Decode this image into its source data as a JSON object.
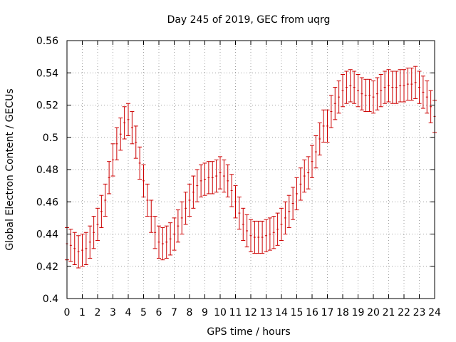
{
  "chart_data": {
    "type": "scatter",
    "title": "Day 245 of 2019, GEC from uqrg",
    "xlabel": "GPS time / hours",
    "ylabel": "Global Electron Content / GECUs",
    "xlim": [
      0,
      24
    ],
    "ylim": [
      0.4,
      0.56
    ],
    "grid": true,
    "x_ticks": [
      0,
      1,
      2,
      3,
      4,
      5,
      6,
      7,
      8,
      9,
      10,
      11,
      12,
      13,
      14,
      15,
      16,
      17,
      18,
      19,
      20,
      21,
      22,
      23,
      24
    ],
    "x_tick_labels": [
      "0",
      "1",
      "2",
      "3",
      "4",
      "5",
      "6",
      "7",
      "8",
      "9",
      "10",
      "11",
      "12",
      "13",
      "14",
      "15",
      "16",
      "17",
      "18",
      "19",
      "20",
      "21",
      "22",
      "23",
      "24"
    ],
    "y_ticks": [
      0.4,
      0.42,
      0.44,
      0.46,
      0.48,
      0.5,
      0.52,
      0.54,
      0.56
    ],
    "y_tick_labels": [
      "0.4",
      "0.42",
      "0.44",
      "0.46",
      "0.48",
      "0.5",
      "0.52",
      "0.54",
      "0.56"
    ],
    "series_color": "#cc0000",
    "error": 0.01,
    "series": [
      {
        "name": "GEC",
        "points": [
          [
            0.0,
            0.434
          ],
          [
            0.25,
            0.433
          ],
          [
            0.5,
            0.431
          ],
          [
            0.75,
            0.429
          ],
          [
            1.0,
            0.43
          ],
          [
            1.25,
            0.431
          ],
          [
            1.5,
            0.435
          ],
          [
            1.75,
            0.441
          ],
          [
            2.0,
            0.446
          ],
          [
            2.25,
            0.454
          ],
          [
            2.5,
            0.461
          ],
          [
            2.75,
            0.475
          ],
          [
            3.0,
            0.486
          ],
          [
            3.25,
            0.496
          ],
          [
            3.5,
            0.502
          ],
          [
            3.75,
            0.509
          ],
          [
            4.0,
            0.511
          ],
          [
            4.25,
            0.506
          ],
          [
            4.5,
            0.497
          ],
          [
            4.75,
            0.484
          ],
          [
            5.0,
            0.473
          ],
          [
            5.25,
            0.461
          ],
          [
            5.5,
            0.451
          ],
          [
            5.75,
            0.441
          ],
          [
            6.0,
            0.435
          ],
          [
            6.25,
            0.434
          ],
          [
            6.5,
            0.435
          ],
          [
            6.75,
            0.437
          ],
          [
            7.0,
            0.44
          ],
          [
            7.25,
            0.445
          ],
          [
            7.5,
            0.45
          ],
          [
            7.75,
            0.456
          ],
          [
            8.0,
            0.461
          ],
          [
            8.25,
            0.466
          ],
          [
            8.5,
            0.47
          ],
          [
            8.75,
            0.473
          ],
          [
            9.0,
            0.474
          ],
          [
            9.25,
            0.475
          ],
          [
            9.5,
            0.475
          ],
          [
            9.75,
            0.476
          ],
          [
            10.0,
            0.478
          ],
          [
            10.25,
            0.476
          ],
          [
            10.5,
            0.473
          ],
          [
            10.75,
            0.467
          ],
          [
            11.0,
            0.46
          ],
          [
            11.25,
            0.453
          ],
          [
            11.5,
            0.446
          ],
          [
            11.75,
            0.442
          ],
          [
            12.0,
            0.439
          ],
          [
            12.25,
            0.438
          ],
          [
            12.5,
            0.438
          ],
          [
            12.75,
            0.438
          ],
          [
            13.0,
            0.439
          ],
          [
            13.25,
            0.44
          ],
          [
            13.5,
            0.441
          ],
          [
            13.75,
            0.443
          ],
          [
            14.0,
            0.446
          ],
          [
            14.25,
            0.45
          ],
          [
            14.5,
            0.454
          ],
          [
            14.75,
            0.459
          ],
          [
            15.0,
            0.465
          ],
          [
            15.25,
            0.471
          ],
          [
            15.5,
            0.476
          ],
          [
            15.75,
            0.478
          ],
          [
            16.0,
            0.485
          ],
          [
            16.25,
            0.491
          ],
          [
            16.5,
            0.499
          ],
          [
            16.75,
            0.507
          ],
          [
            17.0,
            0.507
          ],
          [
            17.25,
            0.516
          ],
          [
            17.5,
            0.521
          ],
          [
            17.75,
            0.525
          ],
          [
            18.0,
            0.529
          ],
          [
            18.25,
            0.531
          ],
          [
            18.5,
            0.532
          ],
          [
            18.75,
            0.531
          ],
          [
            19.0,
            0.529
          ],
          [
            19.25,
            0.527
          ],
          [
            19.5,
            0.526
          ],
          [
            19.75,
            0.526
          ],
          [
            20.0,
            0.525
          ],
          [
            20.25,
            0.527
          ],
          [
            20.5,
            0.529
          ],
          [
            20.75,
            0.531
          ],
          [
            21.0,
            0.532
          ],
          [
            21.25,
            0.531
          ],
          [
            21.5,
            0.531
          ],
          [
            21.75,
            0.532
          ],
          [
            22.0,
            0.532
          ],
          [
            22.25,
            0.533
          ],
          [
            22.5,
            0.533
          ],
          [
            22.75,
            0.534
          ],
          [
            23.0,
            0.531
          ],
          [
            23.25,
            0.528
          ],
          [
            23.5,
            0.525
          ],
          [
            23.75,
            0.519
          ],
          [
            24.0,
            0.513
          ]
        ]
      }
    ]
  }
}
